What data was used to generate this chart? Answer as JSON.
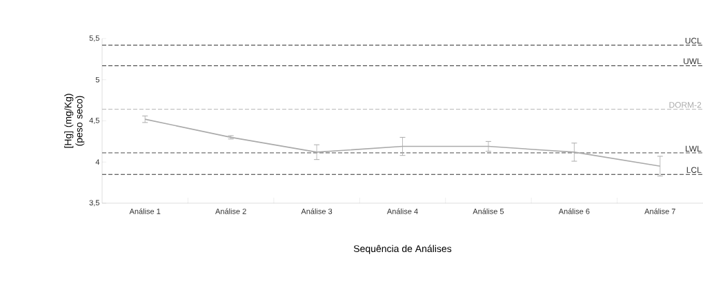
{
  "chart_data": {
    "type": "line",
    "xlabel": "Sequência de Análises",
    "ylabel": "[Hg] (mg/Kg) (peso seco)",
    "categories": [
      "Análise 1",
      "Análise 2",
      "Análise 3",
      "Análise 4",
      "Análise 5",
      "Análise 6",
      "Análise 7"
    ],
    "series": [
      {
        "color": "#aaaaaa",
        "values": [
          4.52,
          4.3,
          4.12,
          4.19,
          4.19,
          4.12,
          3.95
        ],
        "errors": [
          0.04,
          0.02,
          0.09,
          0.11,
          0.06,
          0.11,
          0.12
        ]
      }
    ],
    "ylim": [
      3.5,
      5.5
    ],
    "yticks": [
      {
        "value": 3.5,
        "label": "3,5"
      },
      4,
      {
        "value": 4.5,
        "label": "4,5"
      },
      5,
      {
        "value": 5.5,
        "label": "5,5"
      }
    ],
    "ref_lines": [
      {
        "axis": "y",
        "value": 5.42,
        "label": "UCL",
        "color": "#333333",
        "line_style": "dashed"
      },
      {
        "axis": "y",
        "value": 5.17,
        "label": "UWL",
        "color": "#333333",
        "line_style": "dashed"
      },
      {
        "axis": "y",
        "value": 4.64,
        "label": "DORM-2",
        "color": "#aaaaaa",
        "line_style": "dashed"
      },
      {
        "axis": "y",
        "value": 4.11,
        "label": "LWL",
        "color": "#333333",
        "line_style": "dashed"
      },
      {
        "axis": "y",
        "value": 3.85,
        "label": "LCL",
        "color": "#333333",
        "line_style": "dashed"
      }
    ],
    "grid": false,
    "marker": "none",
    "line_style": "solid"
  }
}
